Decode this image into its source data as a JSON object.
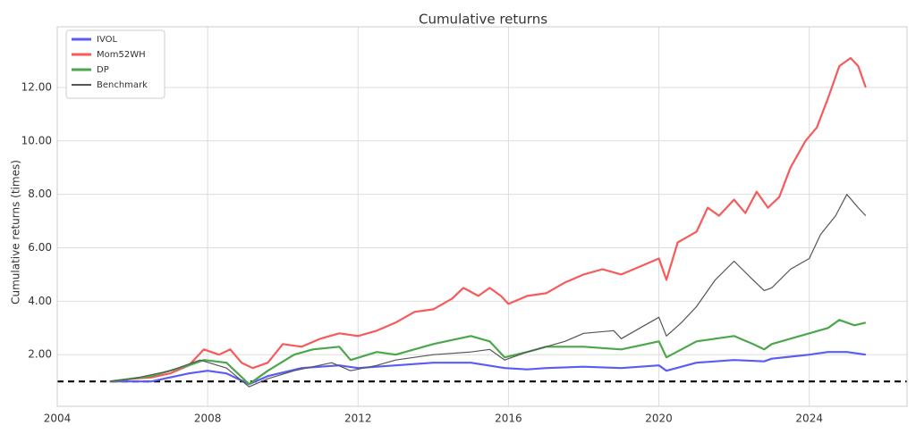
{
  "chart_data": {
    "type": "line",
    "title": "Cumulative returns",
    "y_label": "Cumulative returns (times)",
    "xlim": [
      2004,
      2026.6
    ],
    "xticks": [
      2004,
      2008,
      2012,
      2016,
      2020,
      2024
    ],
    "ylim": [
      0.07,
      14.27
    ],
    "yticks": [
      {
        "value": 2,
        "label": "2.00"
      },
      {
        "value": 4,
        "label": "4.00"
      },
      {
        "value": 6,
        "label": "6.00"
      },
      {
        "value": 8,
        "label": "8.00"
      },
      {
        "value": 10,
        "label": "10.00"
      },
      {
        "value": 12,
        "label": "12.00"
      }
    ],
    "grid": true,
    "legend": "upper left",
    "reference_line": 1,
    "series": [
      {
        "name": "IVOL",
        "color": "#5b5bf5",
        "width": 2.2,
        "x": [
          2005.4,
          2006.5,
          2007.5,
          2008,
          2008.5,
          2009.1,
          2009.6,
          2010.5,
          2011.5,
          2012,
          2013,
          2014,
          2015,
          2015.9,
          2016.5,
          2017,
          2018,
          2019,
          2020,
          2020.2,
          2021,
          2022,
          2022.8,
          2023,
          2024,
          2024.5,
          2025,
          2025.5
        ],
        "values": [
          1.0,
          1.0,
          1.3,
          1.4,
          1.3,
          0.9,
          1.2,
          1.5,
          1.6,
          1.5,
          1.6,
          1.7,
          1.7,
          1.5,
          1.45,
          1.5,
          1.55,
          1.5,
          1.6,
          1.4,
          1.7,
          1.8,
          1.75,
          1.85,
          2.0,
          2.1,
          2.1,
          2.0
        ]
      },
      {
        "name": "Mom52WH",
        "color": "#f65a5a",
        "width": 2.2,
        "x": [
          2005.4,
          2006,
          2006.5,
          2007,
          2007.5,
          2007.9,
          2008.3,
          2008.6,
          2008.9,
          2009.2,
          2009.6,
          2010,
          2010.5,
          2011,
          2011.5,
          2012,
          2012.5,
          2013,
          2013.5,
          2014,
          2014.5,
          2014.8,
          2015.2,
          2015.5,
          2015.8,
          2016,
          2016.5,
          2017,
          2017.5,
          2018,
          2018.5,
          2019,
          2019.5,
          2020,
          2020.2,
          2020.5,
          2021,
          2021.3,
          2021.6,
          2022,
          2022.3,
          2022.6,
          2022.9,
          2023.2,
          2023.5,
          2023.9,
          2024.2,
          2024.5,
          2024.8,
          2025.1,
          2025.3,
          2025.5
        ],
        "values": [
          1.0,
          1.1,
          1.15,
          1.3,
          1.6,
          2.2,
          2.0,
          2.2,
          1.7,
          1.5,
          1.7,
          2.4,
          2.3,
          2.6,
          2.8,
          2.7,
          2.9,
          3.2,
          3.6,
          3.7,
          4.1,
          4.5,
          4.2,
          4.5,
          4.2,
          3.9,
          4.2,
          4.3,
          4.7,
          5.0,
          5.2,
          5.0,
          5.3,
          5.6,
          4.8,
          6.2,
          6.6,
          7.5,
          7.2,
          7.8,
          7.3,
          8.1,
          7.5,
          7.9,
          9.0,
          10.0,
          10.5,
          11.6,
          12.8,
          13.1,
          12.8,
          12.0
        ]
      },
      {
        "name": "DP",
        "color": "#4ca64c",
        "width": 2.2,
        "x": [
          2005.4,
          2006.5,
          2007.5,
          2007.9,
          2008.5,
          2009.1,
          2009.6,
          2010.3,
          2010.8,
          2011.5,
          2011.8,
          2012.5,
          2013,
          2014,
          2015,
          2015.5,
          2015.9,
          2016.5,
          2017,
          2018,
          2019,
          2020,
          2020.2,
          2020.6,
          2021,
          2022,
          2022.5,
          2022.8,
          2023,
          2024,
          2024.5,
          2024.8,
          2025.2,
          2025.5
        ],
        "values": [
          1.0,
          1.2,
          1.6,
          1.8,
          1.7,
          0.9,
          1.4,
          2.0,
          2.2,
          2.3,
          1.8,
          2.1,
          2.0,
          2.4,
          2.7,
          2.5,
          1.9,
          2.1,
          2.3,
          2.3,
          2.2,
          2.5,
          1.9,
          2.2,
          2.5,
          2.7,
          2.4,
          2.2,
          2.4,
          2.8,
          3.0,
          3.3,
          3.1,
          3.2
        ]
      },
      {
        "name": "Benchmark",
        "color": "#555555",
        "width": 1.2,
        "x": [
          2005.4,
          2006,
          2007,
          2007.8,
          2008.5,
          2009.1,
          2009.6,
          2010.3,
          2011.3,
          2011.8,
          2012.5,
          2013,
          2014,
          2015,
          2015.5,
          2015.9,
          2016.5,
          2017,
          2017.5,
          2018,
          2018.8,
          2019,
          2019.5,
          2020,
          2020.2,
          2020.6,
          2021,
          2021.5,
          2022,
          2022.5,
          2022.8,
          2023,
          2023.5,
          2024,
          2024.3,
          2024.7,
          2025,
          2025.3,
          2025.5
        ],
        "values": [
          1.0,
          1.1,
          1.4,
          1.8,
          1.5,
          0.8,
          1.1,
          1.4,
          1.7,
          1.4,
          1.6,
          1.8,
          2.0,
          2.1,
          2.2,
          1.8,
          2.1,
          2.3,
          2.5,
          2.8,
          2.9,
          2.6,
          3.0,
          3.4,
          2.7,
          3.2,
          3.8,
          4.8,
          5.5,
          4.8,
          4.4,
          4.5,
          5.2,
          5.6,
          6.5,
          7.2,
          8.0,
          7.5,
          7.2
        ]
      }
    ]
  }
}
